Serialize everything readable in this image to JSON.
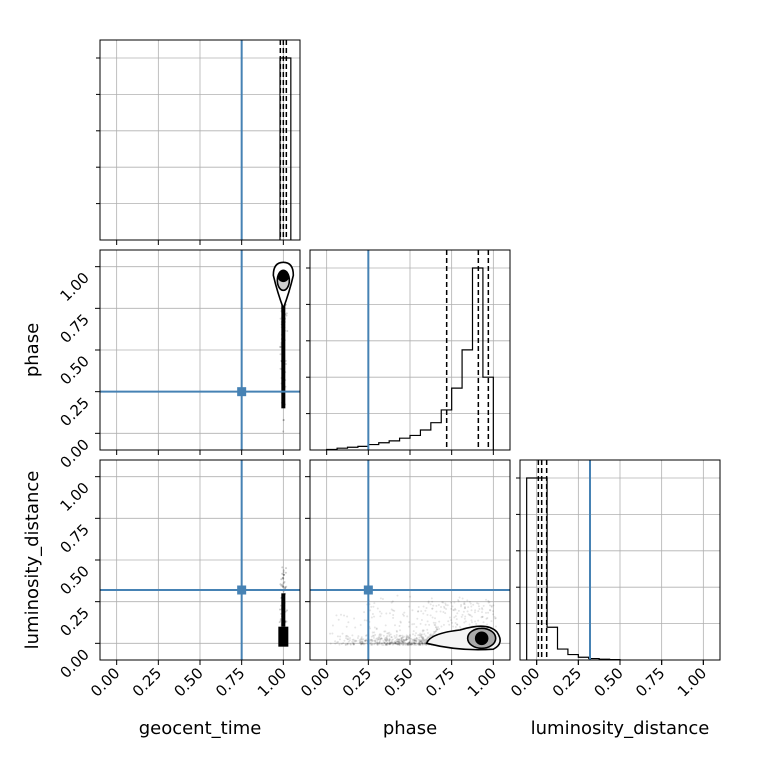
{
  "colors": {
    "truth": "#4682b4",
    "ink": "#000000",
    "grid": "#b0b0b0"
  },
  "chart_data": {
    "type": "corner",
    "parameters": [
      "geocent_time",
      "phase",
      "luminosity_distance"
    ],
    "axis_ranges": {
      "geocent_time": [
        -0.1,
        1.1
      ],
      "phase": [
        -0.1,
        1.1
      ],
      "luminosity_distance": [
        -0.1,
        1.1
      ]
    },
    "ticks": [
      0.0,
      0.25,
      0.5,
      0.75,
      1.0
    ],
    "tick_labels": [
      "0.00",
      "0.25",
      "0.50",
      "0.75",
      "1.00"
    ],
    "grid": true,
    "truths": {
      "geocent_time": 0.75,
      "phase": 0.25,
      "luminosity_distance": 0.32
    },
    "histograms": {
      "geocent_time": {
        "bin_edges": [
          0.98,
          1.045
        ],
        "values": [
          1.0
        ],
        "quantiles": [
          0.982,
          1.0,
          1.018
        ]
      },
      "phase": {
        "bin_edges": [
          0.0,
          0.0625,
          0.125,
          0.1875,
          0.25,
          0.3125,
          0.375,
          0.4375,
          0.5,
          0.5625,
          0.625,
          0.6875,
          0.75,
          0.8125,
          0.875,
          0.9375,
          1.0
        ],
        "values": [
          0.003,
          0.01,
          0.015,
          0.02,
          0.03,
          0.04,
          0.05,
          0.065,
          0.08,
          0.11,
          0.15,
          0.22,
          0.34,
          0.55,
          1.0,
          0.4
        ],
        "quantiles": [
          0.72,
          0.91,
          0.97
        ]
      },
      "luminosity_distance": {
        "bin_edges": [
          -0.06,
          0.0,
          0.0625,
          0.125,
          0.1875,
          0.25,
          0.3125,
          0.375,
          0.4375,
          0.5
        ],
        "values": [
          1.0,
          1.0,
          0.18,
          0.06,
          0.03,
          0.015,
          0.008,
          0.004,
          0.002
        ],
        "quantiles": [
          0.01,
          0.03,
          0.06
        ]
      }
    },
    "contours_2d": {
      "phase_vs_geocent_time": {
        "center": [
          1.0,
          0.93
        ],
        "contour_levels": 3
      },
      "luminosity_distance_vs_geocent_time": {
        "center": [
          1.0,
          0.03
        ],
        "contour_levels": 3
      },
      "luminosity_distance_vs_phase": {
        "center": [
          0.93,
          0.03
        ],
        "contour_levels": 3
      }
    }
  }
}
